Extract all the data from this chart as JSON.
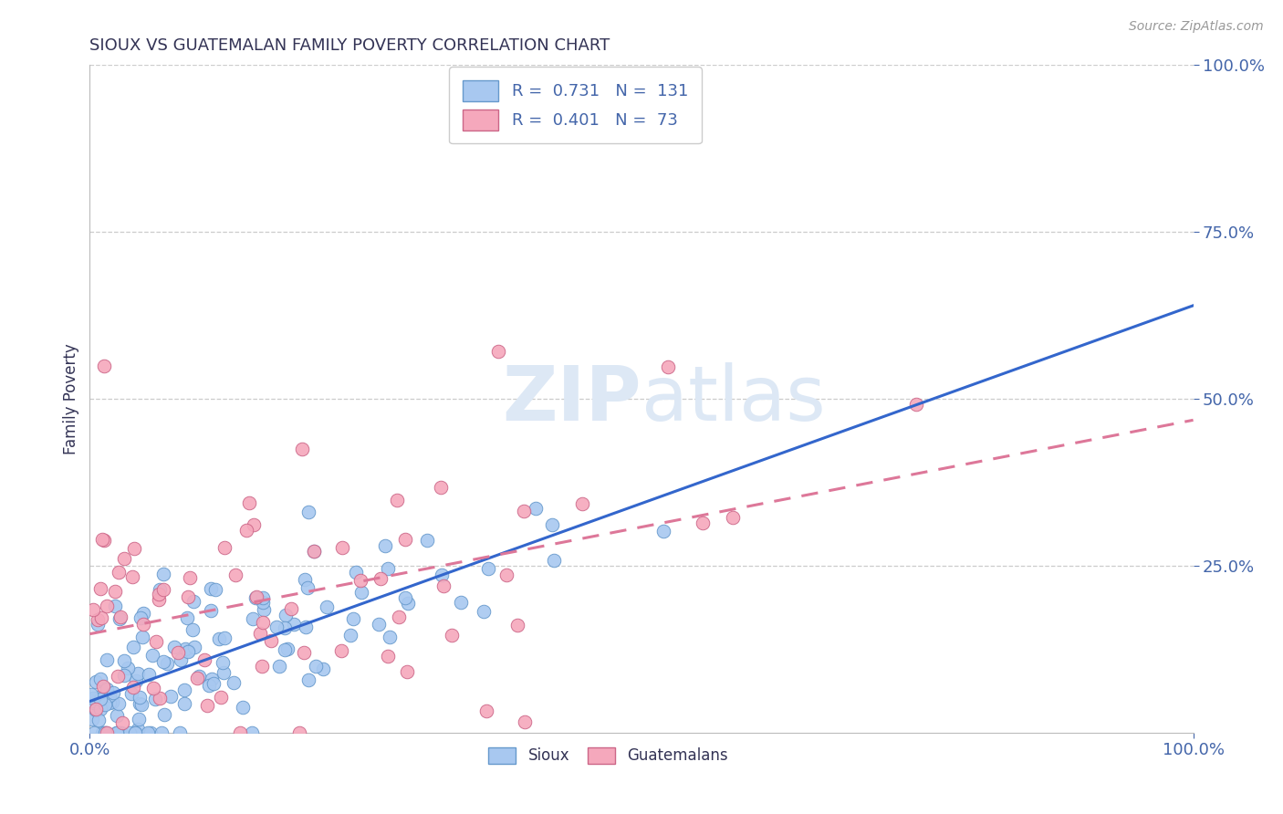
{
  "title": "SIOUX VS GUATEMALAN FAMILY POVERTY CORRELATION CHART",
  "source_text": "Source: ZipAtlas.com",
  "ylabel": "Family Poverty",
  "sioux_color": "#A8C8F0",
  "sioux_edge_color": "#6699CC",
  "guatemalan_color": "#F5A8BC",
  "guatemalan_edge_color": "#CC6688",
  "sioux_line_color": "#3366CC",
  "guatemalan_line_color": "#DD7799",
  "sioux_R": 0.731,
  "sioux_N": 131,
  "guatemalan_R": 0.401,
  "guatemalan_N": 73,
  "legend_label_sioux": "Sioux",
  "legend_label_guatemalan": "Guatemalans",
  "background_color": "#FFFFFF",
  "grid_color": "#CCCCCC",
  "title_color": "#333355",
  "axis_label_color": "#4466AA",
  "watermark_color": "#DDE8F5"
}
